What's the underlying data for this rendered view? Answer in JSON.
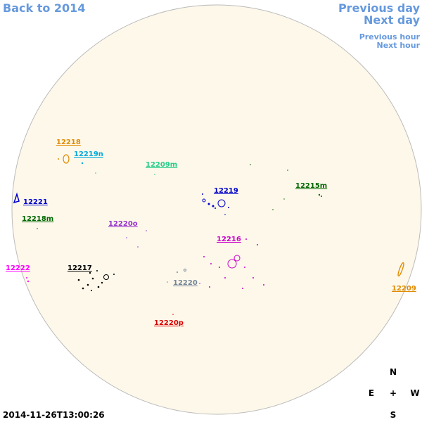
{
  "nav": {
    "back": "Back to 2014",
    "previous_day": "Previous day",
    "next_day": "Next day",
    "previous_hour": "Previous hour",
    "next_hour": "Next hour"
  },
  "timestamp": "2014-11-26T13:00:26",
  "compass": {
    "north": "N",
    "east": "E",
    "center": "+",
    "west": "W",
    "south": "S"
  },
  "regions": [
    {
      "label": "12218",
      "color": "#e08a00"
    },
    {
      "label": "12219n",
      "color": "#00aadd"
    },
    {
      "label": "12209m",
      "color": "#22cc88"
    },
    {
      "label": "12221",
      "color": "#0000cc"
    },
    {
      "label": "12218m",
      "color": "#006600"
    },
    {
      "label": "12219",
      "color": "#0000cc"
    },
    {
      "label": "12215m",
      "color": "#006600"
    },
    {
      "label": "12220o",
      "color": "#9933cc"
    },
    {
      "label": "12216",
      "color": "#cc00cc"
    },
    {
      "label": "12222",
      "color": "#ff00ff"
    },
    {
      "label": "12217",
      "color": "#000000"
    },
    {
      "label": "12220",
      "color": "#778899"
    },
    {
      "label": "12209",
      "color": "#e08a00"
    },
    {
      "label": "12220p",
      "color": "#dd0000"
    }
  ]
}
